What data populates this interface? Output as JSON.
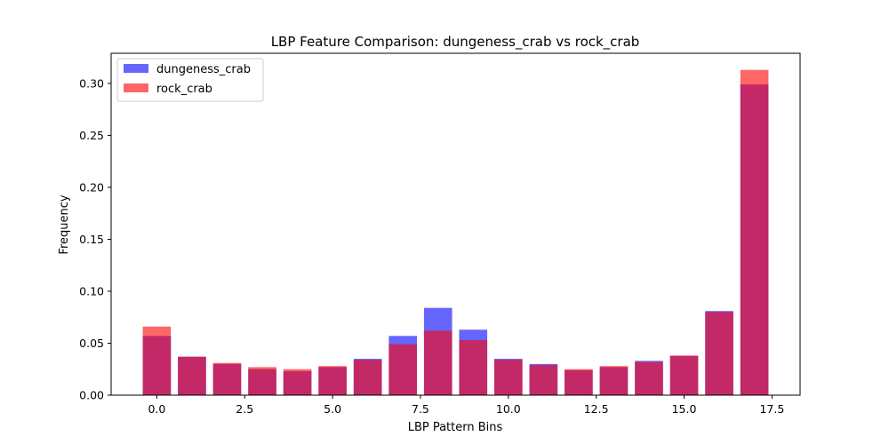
{
  "chart_data": {
    "type": "bar",
    "title": "LBP Feature Comparison: dungeness_crab vs rock_crab",
    "xlabel": "LBP Pattern Bins",
    "ylabel": "Frequency",
    "x": [
      0,
      1,
      2,
      3,
      4,
      5,
      6,
      7,
      8,
      9,
      10,
      11,
      12,
      13,
      14,
      15,
      16,
      17
    ],
    "xlim": [
      -1.3,
      18.3
    ],
    "ylim": [
      0,
      0.329
    ],
    "xticks": [
      "0.0",
      "2.5",
      "5.0",
      "7.5",
      "10.0",
      "12.5",
      "15.0",
      "17.5"
    ],
    "xtick_values": [
      0,
      2.5,
      5,
      7.5,
      10,
      12.5,
      15,
      17.5
    ],
    "yticks": [
      "0.00",
      "0.05",
      "0.10",
      "0.15",
      "0.20",
      "0.25",
      "0.30"
    ],
    "ytick_values": [
      0,
      0.05,
      0.1,
      0.15,
      0.2,
      0.25,
      0.3
    ],
    "grid": false,
    "legend": "top-left",
    "series": [
      {
        "name": "dungeness_crab",
        "color": "#0000ff",
        "opacity": 0.6,
        "values": [
          0.057,
          0.037,
          0.03,
          0.025,
          0.023,
          0.027,
          0.035,
          0.057,
          0.084,
          0.063,
          0.035,
          0.03,
          0.024,
          0.027,
          0.033,
          0.038,
          0.081,
          0.299
        ]
      },
      {
        "name": "rock_crab",
        "color": "#ff0000",
        "opacity": 0.6,
        "values": [
          0.066,
          0.037,
          0.031,
          0.027,
          0.025,
          0.028,
          0.034,
          0.049,
          0.062,
          0.053,
          0.034,
          0.029,
          0.025,
          0.028,
          0.032,
          0.038,
          0.08,
          0.313
        ]
      }
    ]
  }
}
